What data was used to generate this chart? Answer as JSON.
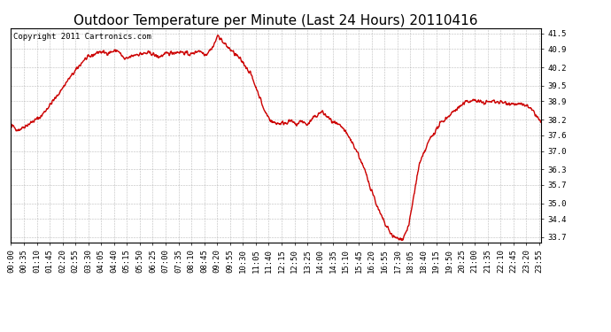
{
  "title": "Outdoor Temperature per Minute (Last 24 Hours) 20110416",
  "copyright_text": "Copyright 2011 Cartronics.com",
  "line_color": "#cc0000",
  "bg_color": "#ffffff",
  "plot_bg_color": "#ffffff",
  "grid_color": "#aaaaaa",
  "yticks": [
    33.7,
    34.4,
    35.0,
    35.7,
    36.3,
    37.0,
    37.6,
    38.2,
    38.9,
    39.5,
    40.2,
    40.9,
    41.5
  ],
  "ylim": [
    33.5,
    41.7
  ],
  "xtick_labels": [
    "00:00",
    "00:35",
    "01:10",
    "01:45",
    "02:20",
    "02:55",
    "03:30",
    "04:05",
    "04:40",
    "05:15",
    "05:50",
    "06:25",
    "07:00",
    "07:35",
    "08:10",
    "08:45",
    "09:20",
    "09:55",
    "10:30",
    "11:05",
    "11:40",
    "12:15",
    "12:50",
    "13:25",
    "14:00",
    "14:35",
    "15:10",
    "15:45",
    "16:20",
    "16:55",
    "17:30",
    "18:05",
    "18:40",
    "19:15",
    "19:50",
    "20:25",
    "21:00",
    "21:35",
    "22:10",
    "22:45",
    "23:20",
    "23:55"
  ],
  "title_fontsize": 11,
  "copyright_fontsize": 6.5,
  "tick_fontsize": 6.5,
  "line_width": 1.0
}
